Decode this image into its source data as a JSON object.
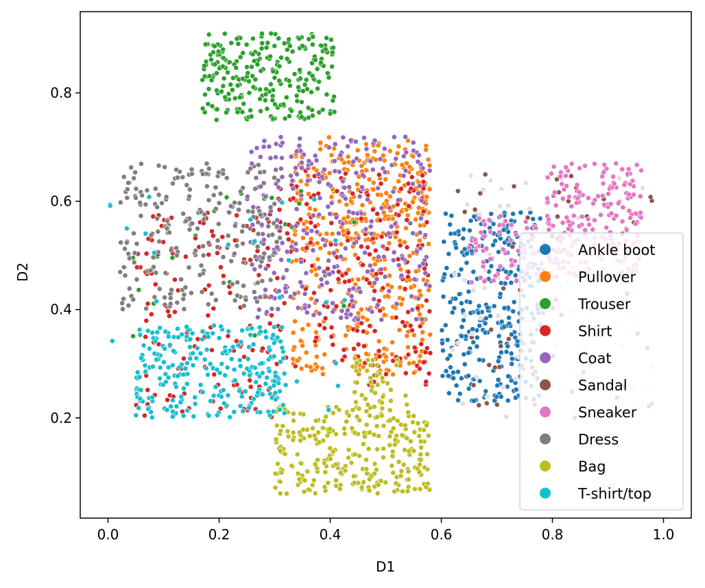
{
  "chart_data": {
    "type": "scatter",
    "title": "",
    "xlabel": "D1",
    "ylabel": "D2",
    "xlim": [
      -0.05,
      1.05
    ],
    "ylim": [
      0.015,
      0.95
    ],
    "xticks": [
      0.0,
      0.2,
      0.4,
      0.6,
      0.8,
      1.0
    ],
    "xtick_labels": [
      "0.0",
      "0.2",
      "0.4",
      "0.6",
      "0.8",
      "1.0"
    ],
    "yticks": [
      0.2,
      0.4,
      0.6,
      0.8
    ],
    "ytick_labels": [
      "0.2",
      "0.4",
      "0.6",
      "0.8"
    ],
    "legend_position": "lower-right",
    "grid": false,
    "series": [
      {
        "name": "Ankle boot",
        "color": "#1f77b4",
        "clusters": [
          [
            0.6,
            0.78,
            0.23,
            0.58,
            320
          ]
        ]
      },
      {
        "name": "Pullover",
        "color": "#ff7f0e",
        "clusters": [
          [
            0.33,
            0.58,
            0.28,
            0.72,
            380
          ],
          [
            0.4,
            0.58,
            0.52,
            0.7,
            90
          ]
        ]
      },
      {
        "name": "Trouser",
        "color": "#2ca02c",
        "clusters": [
          [
            0.17,
            0.41,
            0.75,
            0.91,
            260
          ],
          [
            0.02,
            0.45,
            0.35,
            0.62,
            25
          ]
        ]
      },
      {
        "name": "Shirt",
        "color": "#d62728",
        "clusters": [
          [
            0.05,
            0.3,
            0.2,
            0.58,
            140
          ],
          [
            0.3,
            0.58,
            0.26,
            0.66,
            200
          ]
        ]
      },
      {
        "name": "Coat",
        "color": "#9467bd",
        "clusters": [
          [
            0.25,
            0.58,
            0.38,
            0.72,
            300
          ]
        ]
      },
      {
        "name": "Sandal",
        "color": "#8c564b",
        "clusters": [
          [
            0.62,
            0.98,
            0.2,
            0.66,
            140
          ]
        ]
      },
      {
        "name": "Sneaker",
        "color": "#e377c2",
        "clusters": [
          [
            0.79,
            0.96,
            0.46,
            0.67,
            220
          ],
          [
            0.65,
            0.79,
            0.45,
            0.58,
            60
          ]
        ]
      },
      {
        "name": "Dress",
        "color": "#7f7f7f",
        "clusters": [
          [
            0.02,
            0.31,
            0.4,
            0.67,
            240
          ]
        ]
      },
      {
        "name": "Bag",
        "color": "#bcbd22",
        "clusters": [
          [
            0.3,
            0.58,
            0.06,
            0.22,
            280
          ],
          [
            0.44,
            0.54,
            0.22,
            0.31,
            40
          ]
        ]
      },
      {
        "name": "T-shirt/top",
        "color": "#17becf",
        "clusters": [
          [
            0.05,
            0.32,
            0.2,
            0.37,
            240
          ],
          [
            0.0,
            0.43,
            0.2,
            0.62,
            40
          ]
        ]
      }
    ],
    "sandal_light_color": "#e8dcd8"
  }
}
